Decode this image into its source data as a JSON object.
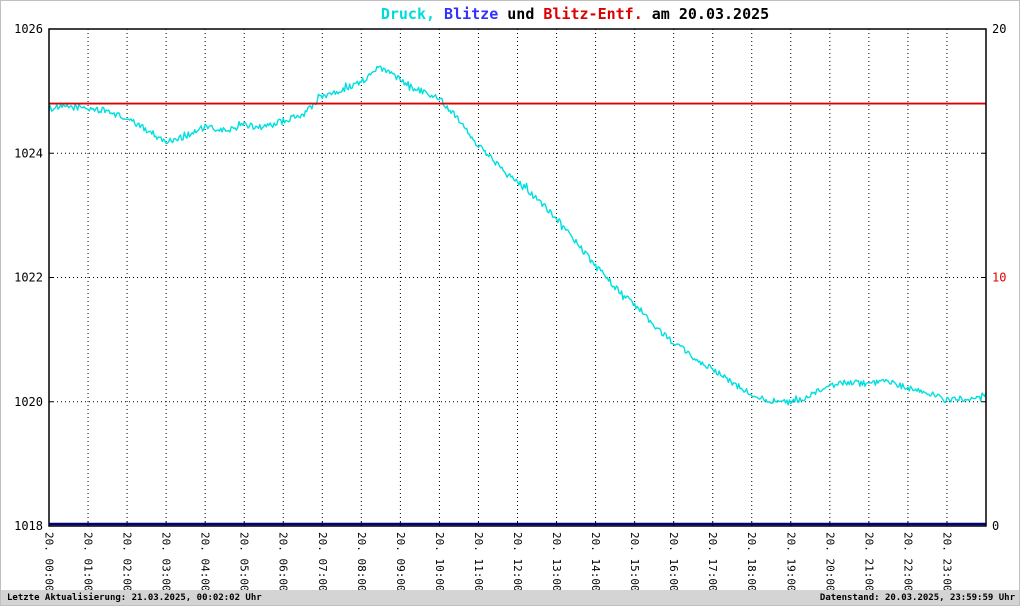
{
  "title": {
    "full_text": "Druck, Blitze und Blitz-Entf. am 20.03.2025",
    "segments": [
      {
        "text": "Druck,",
        "color": "#00dcdc"
      },
      {
        "text": " Blitze",
        "color": "#3333ff"
      },
      {
        "text": " und ",
        "color": "#000000"
      },
      {
        "text": "Blitz-Entf.",
        "color": "#dd0000"
      },
      {
        "text": " am 20.03.2025",
        "color": "#000000"
      }
    ]
  },
  "footer": {
    "left": "Letzte Aktualisierung: 21.03.2025, 00:02:02 Uhr",
    "right": "Datenstand: 20.03.2025, 23:59:59 Uhr"
  },
  "chart_data": {
    "type": "line",
    "title": "Druck, Blitze und Blitz-Entf. am 20.03.2025",
    "grid": true,
    "x_range": [
      0,
      24
    ],
    "x_tick_labels": [
      "20. 00:00",
      "20. 01:00",
      "20. 02:00",
      "20. 03:00",
      "20. 04:00",
      "20. 05:00",
      "20. 06:00",
      "20. 07:00",
      "20. 08:00",
      "20. 09:00",
      "20. 10:00",
      "20. 11:00",
      "20. 12:00",
      "20. 13:00",
      "20. 14:00",
      "20. 15:00",
      "20. 16:00",
      "20. 17:00",
      "20. 18:00",
      "20. 19:00",
      "20. 20:00",
      "20. 21:00",
      "20. 22:00",
      "20. 23:00"
    ],
    "left_axis": {
      "min": 1018,
      "max": 1026,
      "ticks": [
        1018,
        1020,
        1022,
        1024,
        1026
      ],
      "gridlines": [
        1020,
        1022,
        1024
      ]
    },
    "right_axis": {
      "min": 0,
      "max": 20,
      "ticks": [
        {
          "value": 20,
          "color": "#000000"
        },
        {
          "value": 10,
          "color": "#dd0000"
        },
        {
          "value": 0,
          "color": "#000000"
        }
      ]
    },
    "series": [
      {
        "name": "Druck",
        "axis": "left",
        "color": "#00dfe0",
        "x_start": 0,
        "x_step_hours": 0.5,
        "noise_amplitude": 0.05,
        "values": [
          1024.72,
          1024.75,
          1024.72,
          1024.68,
          1024.55,
          1024.38,
          1024.18,
          1024.28,
          1024.42,
          1024.36,
          1024.45,
          1024.42,
          1024.52,
          1024.62,
          1024.92,
          1025.02,
          1025.15,
          1025.38,
          1025.18,
          1025.02,
          1024.88,
          1024.55,
          1024.12,
          1023.82,
          1023.55,
          1023.28,
          1022.95,
          1022.58,
          1022.18,
          1021.85,
          1021.55,
          1021.22,
          1020.95,
          1020.72,
          1020.52,
          1020.3,
          1020.12,
          1020.02,
          1019.98,
          1020.1,
          1020.25,
          1020.32,
          1020.28,
          1020.32,
          1020.22,
          1020.15,
          1020.02,
          1020.06,
          1020.1
        ]
      },
      {
        "name": "Blitz-Entf.",
        "axis": "right",
        "color": "#dd0000",
        "constant": 17
      },
      {
        "name": "Blitze",
        "axis": "right",
        "color": "#000080",
        "constant": 0
      }
    ]
  }
}
